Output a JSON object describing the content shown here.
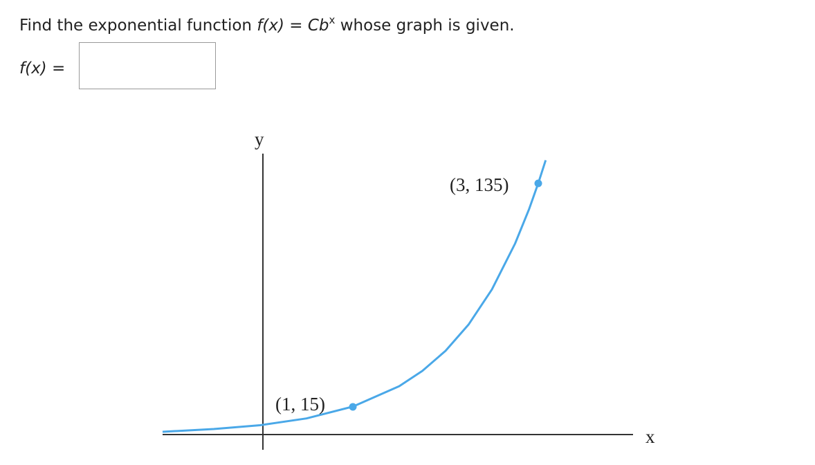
{
  "question": {
    "text_before": "Find the exponential function",
    "function": "f(x)",
    "equals": "=",
    "base": "Cb",
    "exponent": "x",
    "text_after": "whose graph is given."
  },
  "answer": {
    "label": "f(x)",
    "equals": "="
  },
  "graph": {
    "y_label": "y",
    "x_label": "x",
    "points": [
      {
        "label": "(1, 15)"
      },
      {
        "label": "(3, 135)"
      }
    ]
  }
}
